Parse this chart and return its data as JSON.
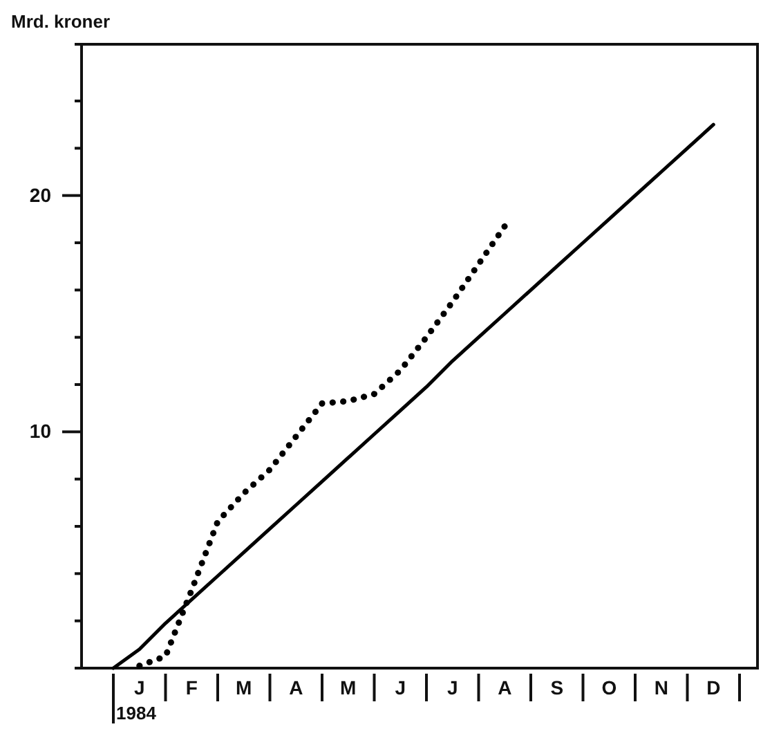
{
  "chart_data": {
    "type": "line",
    "ylabel": "Mrd. kroner",
    "annotations": [
      "1984"
    ],
    "categories": [
      null,
      "J",
      null,
      "F",
      null,
      "M",
      null,
      "A",
      null,
      "M",
      null,
      "J",
      null,
      "J",
      null,
      "A",
      null,
      "S",
      null,
      "O",
      null,
      "N",
      null,
      "D",
      null
    ],
    "ylim": [
      0,
      26.4
    ],
    "yticks": [
      {
        "value": 2,
        "label": null
      },
      {
        "value": 4,
        "label": null
      },
      {
        "value": 6,
        "label": null
      },
      {
        "value": 8,
        "label": null
      },
      10,
      {
        "value": 12,
        "label": null
      },
      {
        "value": 14,
        "label": null
      },
      {
        "value": 16,
        "label": null
      },
      {
        "value": 18,
        "label": null
      },
      20,
      {
        "value": 22,
        "label": null
      },
      {
        "value": 24,
        "label": null
      }
    ],
    "series": [
      {
        "color": "#000000",
        "line_style": "solid",
        "values": [
          0,
          0.8,
          1.9,
          2.9,
          3.9,
          4.9,
          5.9,
          6.9,
          7.9,
          8.9,
          9.9,
          10.9,
          11.9,
          13.0,
          14.0,
          15.0,
          16.0,
          17.0,
          18.0,
          19.0,
          20.0,
          21.0,
          22.0,
          23.0,
          null
        ]
      },
      {
        "color": "#000000",
        "line_style": "dotted",
        "values": [
          null,
          0.1,
          0.5,
          3.3,
          6.2,
          7.4,
          8.4,
          9.8,
          11.2,
          11.3,
          11.6,
          12.6,
          14.0,
          15.5,
          17.1,
          18.7,
          null,
          null,
          null,
          null,
          null,
          null,
          null,
          null,
          null
        ]
      }
    ]
  }
}
